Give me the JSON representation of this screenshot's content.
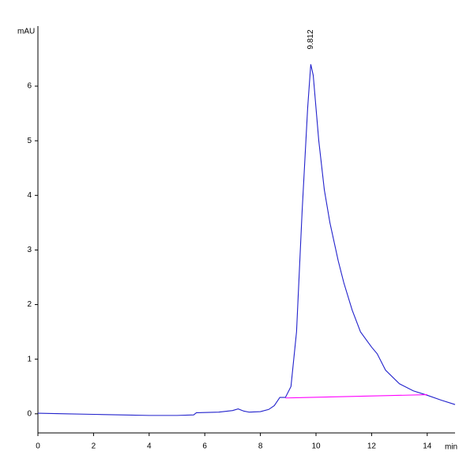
{
  "chart_data": {
    "type": "line",
    "ylabel": "mAU",
    "xlabel": "min",
    "xlim": [
      0,
      15
    ],
    "ylim": [
      -0.35,
      7.1
    ],
    "xticks": [
      0,
      2,
      4,
      6,
      8,
      10,
      12,
      14
    ],
    "yticks": [
      0,
      1,
      2,
      3,
      4,
      5,
      6
    ],
    "x": [
      0,
      1,
      2,
      3,
      4,
      5,
      5.6,
      5.7,
      6.5,
      7.0,
      7.2,
      7.4,
      7.6,
      8.0,
      8.3,
      8.5,
      8.7,
      8.9,
      9.1,
      9.3,
      9.5,
      9.7,
      9.812,
      9.9,
      10.1,
      10.3,
      10.5,
      10.8,
      11.0,
      11.3,
      11.6,
      12.0,
      12.2,
      12.5,
      13.0,
      13.5,
      14.0,
      14.5,
      15
    ],
    "series": [
      {
        "color": "#2222cc",
        "values": [
          0.01,
          0.0,
          -0.01,
          -0.02,
          -0.03,
          -0.03,
          -0.02,
          0.02,
          0.03,
          0.06,
          0.09,
          0.05,
          0.03,
          0.04,
          0.08,
          0.15,
          0.3,
          0.3,
          0.5,
          1.5,
          3.7,
          5.6,
          6.4,
          6.2,
          5.0,
          4.1,
          3.5,
          2.8,
          2.4,
          1.9,
          1.5,
          1.22,
          1.1,
          0.8,
          0.55,
          0.42,
          0.34,
          0.25,
          0.17
        ]
      }
    ],
    "baseline": {
      "color": "#ff00ff",
      "x": [
        8.9,
        14.0
      ],
      "values": [
        0.29,
        0.35
      ]
    },
    "peak_label": {
      "text": "9.812",
      "x": 9.812
    }
  }
}
